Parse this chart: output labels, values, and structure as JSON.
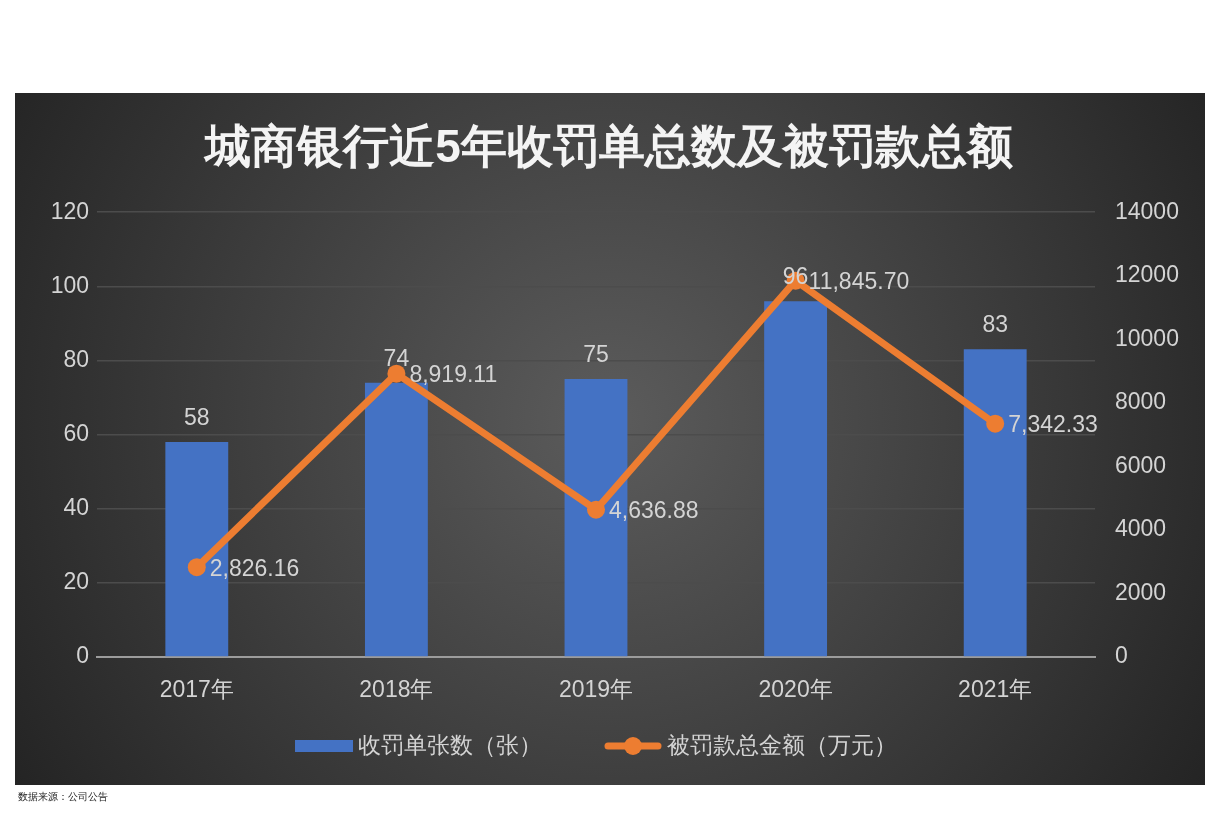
{
  "chart_data": {
    "type": "bar",
    "title": "城商银行近5年收罚单总数及被罚款总额",
    "categories": [
      "2017年",
      "2018年",
      "2019年",
      "2020年",
      "2021年"
    ],
    "series": [
      {
        "name": "收罚单张数（张）",
        "color": "#4472c4",
        "values": [
          58,
          74,
          75,
          96,
          83
        ],
        "value_labels": [
          "58",
          "74",
          "75",
          "96",
          "83"
        ]
      },
      {
        "name": "被罚款总金额（万元）",
        "type": "line",
        "axis": "y2",
        "color": "#ed7d31",
        "values": [
          2826.16,
          8919.11,
          4636.88,
          11845.7,
          7342.33
        ],
        "value_labels": [
          "2,826.16",
          "8,919.11",
          "4,636.88",
          "11,845.70",
          "7,342.33"
        ]
      }
    ],
    "ylim": [
      0,
      120
    ],
    "yticks": [
      0,
      20,
      40,
      60,
      80,
      100,
      120
    ],
    "y2lim": [
      0,
      14000
    ],
    "y2ticks": [
      0,
      2000,
      4000,
      6000,
      8000,
      10000,
      12000,
      14000
    ],
    "grid": "y",
    "legend": "bottom",
    "marker": "circle",
    "annotations": [
      "数据来源：公司公告"
    ]
  }
}
